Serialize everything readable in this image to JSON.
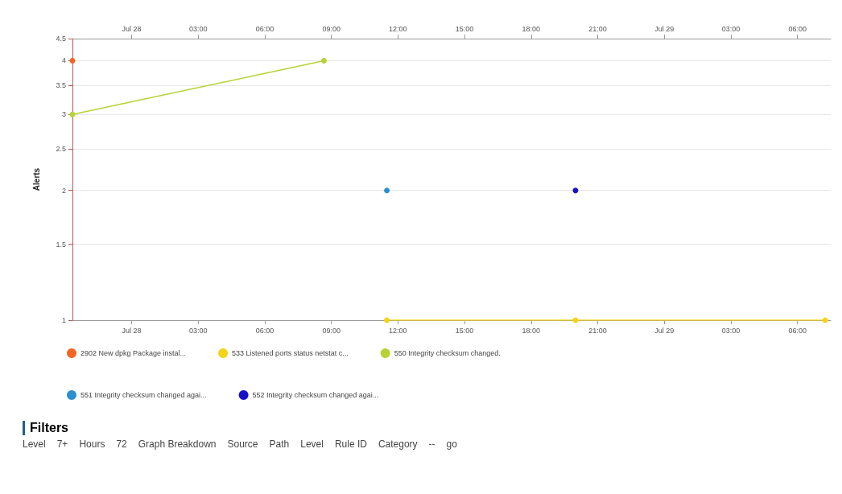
{
  "chart_data": {
    "type": "line",
    "ylabel": "Alerts",
    "xlim": [
      "--07-27T21:20",
      "--07-29T07:30"
    ],
    "xticks": [
      {
        "value": "--07-28T00:00",
        "label": "Jul 28"
      },
      {
        "value": "--07-28T03:00",
        "label": "03:00"
      },
      {
        "value": "--07-28T06:00",
        "label": "06:00"
      },
      {
        "value": "--07-28T09:00",
        "label": "09:00"
      },
      {
        "value": "--07-28T12:00",
        "label": "12:00"
      },
      {
        "value": "--07-28T15:00",
        "label": "15:00"
      },
      {
        "value": "--07-28T18:00",
        "label": "18:00"
      },
      {
        "value": "--07-28T21:00",
        "label": "21:00"
      },
      {
        "value": "--07-29T00:00",
        "label": "Jul 29"
      },
      {
        "value": "--07-29T03:00",
        "label": "03:00"
      },
      {
        "value": "--07-29T06:00",
        "label": "06:00"
      }
    ],
    "x2lim": [
      "--07-27T21:20",
      "--07-29T07:30"
    ],
    "x2ticks": [
      {
        "value": "--07-28T00:00",
        "label": "Jul 28"
      },
      {
        "value": "--07-28T03:00",
        "label": "03:00"
      },
      {
        "value": "--07-28T06:00",
        "label": "06:00"
      },
      {
        "value": "--07-28T09:00",
        "label": "09:00"
      },
      {
        "value": "--07-28T12:00",
        "label": "12:00"
      },
      {
        "value": "--07-28T15:00",
        "label": "15:00"
      },
      {
        "value": "--07-28T18:00",
        "label": "18:00"
      },
      {
        "value": "--07-28T21:00",
        "label": "21:00"
      },
      {
        "value": "--07-29T00:00",
        "label": "Jul 29"
      },
      {
        "value": "--07-29T03:00",
        "label": "03:00"
      },
      {
        "value": "--07-29T06:00",
        "label": "06:00"
      }
    ],
    "ylim": [
      1,
      4.5
    ],
    "yticks": [
      1,
      1.5,
      2,
      2.5,
      3,
      3.5,
      4,
      4.5
    ],
    "log": "y",
    "grid": "y",
    "legend": "bottom",
    "marker": "circle",
    "line_style": "solid",
    "series": [
      {
        "name": "2902 New dpkg Package instal...",
        "color": "#f26522",
        "x": [
          "--07-27T21:20"
        ],
        "values": [
          4
        ]
      },
      {
        "name": "533 Listened ports status netstat c...",
        "color": "#f5d31a",
        "x": [
          "--07-28T11:30",
          "--07-28T20:00",
          "--07-29T07:15"
        ],
        "values": [
          1,
          1,
          1
        ]
      },
      {
        "name": "550 Integrity checksum changed.",
        "color": "#b5d334",
        "x": [
          "--07-27T21:20",
          "--07-28T08:40"
        ],
        "values": [
          3,
          4
        ]
      },
      {
        "name": "551 Integrity checksum changed agai...",
        "color": "#2b8fd0",
        "x": [
          "--07-28T11:30"
        ],
        "values": [
          2
        ]
      },
      {
        "name": "552 Integrity checksum changed agai...",
        "color": "#1a10c8",
        "x": [
          "--07-28T20:00"
        ],
        "values": [
          2
        ]
      }
    ],
    "annotations": [
      "Filters",
      "Level",
      "7+",
      "Hours",
      "72",
      "Graph Breakdown",
      "Source",
      "Path",
      "Level",
      "Rule ID",
      "Category",
      "--",
      "go"
    ]
  }
}
